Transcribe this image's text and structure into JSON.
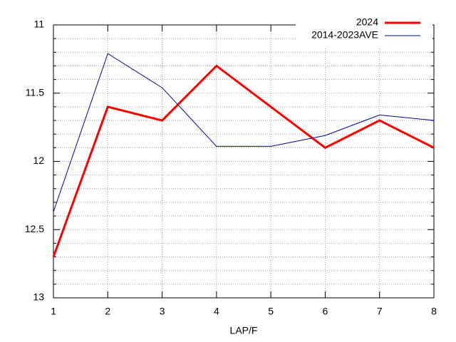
{
  "chart_data": {
    "type": "line",
    "x": [
      1,
      2,
      3,
      4,
      5,
      6,
      7,
      8
    ],
    "xlim": [
      1,
      8
    ],
    "xticks": [
      1,
      2,
      3,
      4,
      5,
      6,
      7,
      8
    ],
    "ylim": [
      13,
      11
    ],
    "yticks": [
      11,
      11.5,
      12,
      12.5,
      13
    ],
    "y_minor_subdivisions": 5,
    "grid": true,
    "legend": "top-right",
    "xlabel": "LAP/F",
    "series": [
      {
        "name": "2024",
        "color": "#ff0000",
        "width": 3,
        "values": [
          12.7,
          11.6,
          11.7,
          11.3,
          11.6,
          11.9,
          11.7,
          11.9
        ]
      },
      {
        "name": "2014-2023AVE",
        "color": "#0000a0",
        "width": 1,
        "values": [
          12.37,
          11.21,
          11.46,
          11.89,
          11.89,
          11.81,
          11.66,
          11.7
        ]
      }
    ]
  }
}
